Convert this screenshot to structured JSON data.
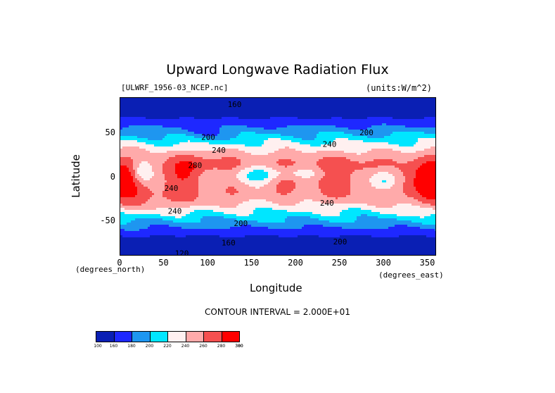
{
  "chart_data": {
    "type": "heatmap",
    "title": "Upward Longwave Radiation Flux",
    "source_label": "[ULWRF_1956-03_NCEP.nc]",
    "units_label": "(units:W/m^2)",
    "xlabel": "Longitude",
    "ylabel": "Latitude",
    "x_units": "(degrees_east)",
    "y_units": "(degrees_north)",
    "xlim": [
      0,
      360
    ],
    "ylim": [
      -90,
      90
    ],
    "x_ticks": [
      0,
      50,
      100,
      150,
      200,
      250,
      300,
      350
    ],
    "y_ticks": [
      -50,
      0,
      50
    ],
    "contour_interval_text": "CONTOUR INTERVAL = 2.000E+01",
    "levels": [
      160,
      180,
      200,
      220,
      240,
      260,
      280,
      300
    ],
    "colorbar_labels": [
      "100",
      "160",
      "180",
      "200",
      "220",
      "240",
      "260",
      "280",
      "300",
      "380"
    ],
    "colorbar_colors": [
      "#0a1fb4",
      "#1e28ff",
      "#1e96f0",
      "#00e6ff",
      "#fff0f0",
      "#ffaaaa",
      "#f55050",
      "#ff0000"
    ],
    "contour_labels": [
      {
        "text": "160",
        "lon": 130,
        "lat": 82
      },
      {
        "text": "200",
        "lon": 100,
        "lat": 45
      },
      {
        "text": "200",
        "lon": 280,
        "lat": 50
      },
      {
        "text": "240",
        "lon": 112,
        "lat": 30
      },
      {
        "text": "240",
        "lon": 238,
        "lat": 37
      },
      {
        "text": "280",
        "lon": 85,
        "lat": 13
      },
      {
        "text": "240",
        "lon": 58,
        "lat": -13
      },
      {
        "text": "240",
        "lon": 62,
        "lat": -39
      },
      {
        "text": "240",
        "lon": 235,
        "lat": -30
      },
      {
        "text": "200",
        "lon": 137,
        "lat": -53
      },
      {
        "text": "160",
        "lon": 123,
        "lat": -75
      },
      {
        "text": "200",
        "lon": 250,
        "lat": -74
      },
      {
        "text": "120",
        "lon": 70,
        "lat": -87
      }
    ]
  }
}
